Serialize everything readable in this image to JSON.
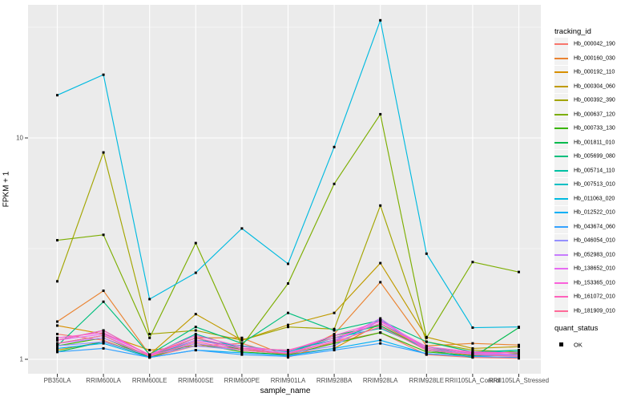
{
  "figure": {
    "panel_background": "#EBEBEB",
    "gridline_color": "#FFFFFF",
    "tick_mark_color": "#333333",
    "tick_label_color": "#4D4D4D",
    "point_color": "#000000"
  },
  "axes": {
    "x_title": "sample_name",
    "y_title": "FPKM + 1",
    "y_ticks": [
      {
        "label": "1",
        "value": 1
      },
      {
        "label": "10",
        "value": 10
      }
    ],
    "y_minor_values": [
      3.1623,
      31.623
    ],
    "y_scale": "log10"
  },
  "legend": {
    "tracking_title": "tracking_id",
    "quant_title": "quant_status",
    "quant_items": [
      {
        "label": "OK",
        "marker": "black-square"
      }
    ]
  },
  "chart_data": {
    "type": "line",
    "title": "",
    "xlabel": "sample_name",
    "ylabel": "FPKM + 1",
    "y_scale": "log10",
    "ylim": [
      1,
      40
    ],
    "grid": true,
    "legend_position": "right",
    "point_marker": "black-square",
    "quant_status": "OK",
    "categories": [
      "PB350LA",
      "RRIM600LA",
      "RRIM600LE",
      "RRIM600SE",
      "RRIM600PE",
      "RRIM901LA",
      "RRIM928BA",
      "RRIM928LA",
      "RRIM928LE",
      "RRII105LA_Control",
      "RRII105LA_Stressed"
    ],
    "series": [
      {
        "name": "Hb_000042_190",
        "color": "#F8766D",
        "values": [
          1.3,
          1.22,
          1.02,
          1.15,
          1.18,
          1.02,
          1.2,
          1.32,
          1.05,
          1.02,
          1.01
        ]
      },
      {
        "name": "Hb_000160_030",
        "color": "#EA8331",
        "values": [
          1.48,
          2.04,
          1.05,
          1.25,
          1.25,
          1.03,
          1.3,
          2.23,
          1.15,
          1.18,
          1.16
        ]
      },
      {
        "name": "Hb_000192_110",
        "color": "#D89000",
        "values": [
          1.42,
          1.3,
          1.1,
          1.15,
          1.12,
          1.05,
          1.12,
          1.45,
          1.1,
          1.05,
          1.04
        ]
      },
      {
        "name": "Hb_000304_060",
        "color": "#C09B00",
        "values": [
          1.1,
          1.2,
          1.05,
          1.6,
          1.22,
          1.43,
          1.62,
          2.72,
          1.26,
          1.12,
          1.14
        ]
      },
      {
        "name": "Hb_000392_390",
        "color": "#A3A500",
        "values": [
          2.25,
          8.6,
          1.3,
          1.35,
          1.22,
          1.4,
          1.37,
          4.95,
          1.2,
          1.1,
          1.08
        ]
      },
      {
        "name": "Hb_000637_120",
        "color": "#7CAE00",
        "values": [
          3.45,
          3.65,
          1.25,
          3.35,
          1.15,
          2.2,
          6.2,
          12.8,
          1.25,
          2.75,
          2.48
        ]
      },
      {
        "name": "Hb_000733_130",
        "color": "#39B600",
        "values": [
          1.15,
          1.25,
          1.02,
          1.18,
          1.08,
          1.05,
          1.18,
          1.32,
          1.08,
          1.04,
          1.06
        ]
      },
      {
        "name": "Hb_001811_010",
        "color": "#00BB4E",
        "values": [
          1.08,
          1.2,
          1.03,
          1.25,
          1.1,
          1.06,
          1.28,
          1.42,
          1.1,
          1.02,
          1.39
        ]
      },
      {
        "name": "Hb_005699_080",
        "color": "#00BF7D",
        "values": [
          1.15,
          1.82,
          1.05,
          1.4,
          1.18,
          1.62,
          1.35,
          1.5,
          1.2,
          1.08,
          1.1
        ]
      },
      {
        "name": "Hb_005714_110",
        "color": "#00C1A3",
        "values": [
          1.22,
          1.35,
          1.04,
          1.3,
          1.12,
          1.1,
          1.22,
          1.45,
          1.14,
          1.06,
          1.1
        ]
      },
      {
        "name": "Hb_007513_010",
        "color": "#00BFC4",
        "values": [
          1.18,
          1.28,
          1.03,
          1.22,
          1.15,
          1.08,
          1.25,
          1.38,
          1.12,
          1.05,
          1.08
        ]
      },
      {
        "name": "Hb_011063_020",
        "color": "#00BAE0",
        "values": [
          15.6,
          19.3,
          1.87,
          2.46,
          3.9,
          2.7,
          9.1,
          34.0,
          3.0,
          1.39,
          1.4
        ]
      },
      {
        "name": "Hb_012522_010",
        "color": "#00B0F6",
        "values": [
          1.12,
          1.18,
          1.02,
          1.1,
          1.07,
          1.04,
          1.12,
          1.22,
          1.06,
          1.03,
          1.05
        ]
      },
      {
        "name": "Hb_043674_060",
        "color": "#35A2FF",
        "values": [
          1.08,
          1.12,
          1.02,
          1.1,
          1.05,
          1.03,
          1.1,
          1.18,
          1.06,
          1.03,
          1.02
        ]
      },
      {
        "name": "Hb_046054_010",
        "color": "#9590FF",
        "values": [
          1.15,
          1.2,
          1.04,
          1.15,
          1.1,
          1.06,
          1.15,
          1.5,
          1.1,
          1.05,
          1.04
        ]
      },
      {
        "name": "Hb_052983_010",
        "color": "#C77CFF",
        "values": [
          1.18,
          1.25,
          1.04,
          1.18,
          1.1,
          1.06,
          1.2,
          1.53,
          1.1,
          1.06,
          1.05
        ]
      },
      {
        "name": "Hb_138652_010",
        "color": "#E76BF3",
        "values": [
          1.22,
          1.3,
          1.05,
          1.22,
          1.12,
          1.07,
          1.22,
          1.5,
          1.12,
          1.07,
          1.05
        ]
      },
      {
        "name": "Hb_153365_010",
        "color": "#FA62DB",
        "values": [
          1.25,
          1.32,
          1.05,
          1.28,
          1.14,
          1.09,
          1.28,
          1.48,
          1.14,
          1.08,
          1.07
        ]
      },
      {
        "name": "Hb_161072_010",
        "color": "#FF62BC",
        "values": [
          1.22,
          1.35,
          1.04,
          1.25,
          1.12,
          1.1,
          1.25,
          1.45,
          1.12,
          1.07,
          1.07
        ]
      },
      {
        "name": "Hb_181909_010",
        "color": "#FF6A98",
        "values": [
          1.18,
          1.28,
          1.03,
          1.2,
          1.1,
          1.06,
          1.2,
          1.4,
          1.1,
          1.05,
          1.03
        ]
      }
    ]
  }
}
